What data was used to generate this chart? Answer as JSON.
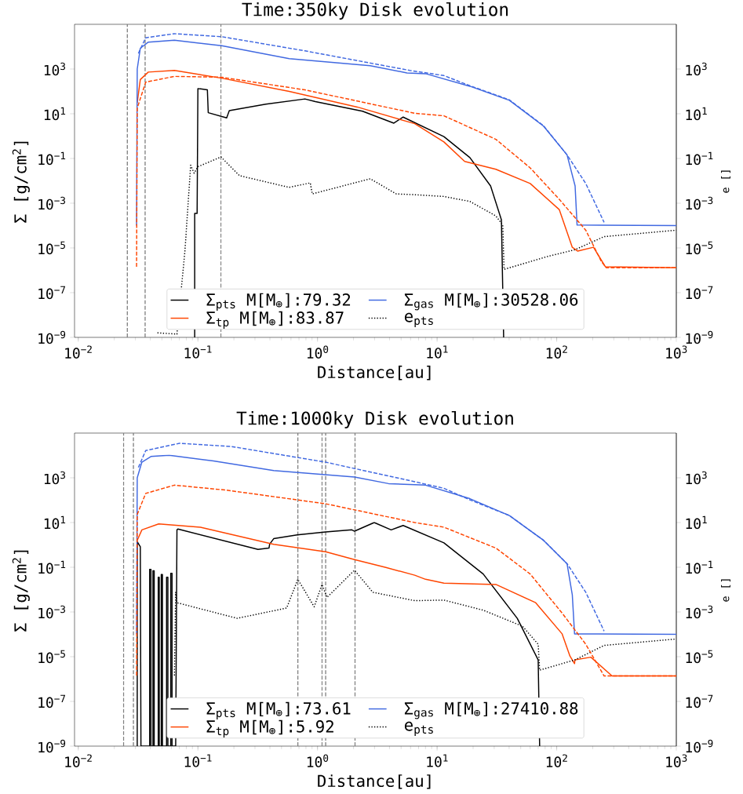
{
  "chart_data": [
    {
      "type": "line",
      "title": "Time:350ky  Disk evolution",
      "xlabel": "Distance[au]",
      "ylabel": "Σ [g/cm$^{2}$]",
      "y2label": "e []",
      "log": "xy",
      "legend": "bottom",
      "xlim": [
        0.0093,
        1000
      ],
      "ylim": [
        1e-09,
        100000.0
      ],
      "xticks": [
        {
          "value": 0.01,
          "label": "10$^{−2}$"
        },
        {
          "value": 0.1,
          "label": "10$^{−1}$"
        },
        {
          "value": 1,
          "label": "10$^{0}$"
        },
        {
          "value": 10,
          "label": "10$^{1}$"
        },
        {
          "value": 100,
          "label": "10$^{2}$"
        },
        {
          "value": 1000,
          "label": "10$^{3}$"
        }
      ],
      "yticks": [
        {
          "value": 1e-09,
          "label": "10$^{−9}$"
        },
        {
          "value": 1e-07,
          "label": "10$^{−7}$"
        },
        {
          "value": 1e-05,
          "label": "10$^{−5}$"
        },
        {
          "value": 0.001,
          "label": "10$^{−3}$"
        },
        {
          "value": 0.1,
          "label": "10$^{−1}$"
        },
        {
          "value": 10,
          "label": "10$^{1}$"
        },
        {
          "value": 1000,
          "label": "10$^{3}$"
        }
      ],
      "ref_lines": [
        {
          "axis": "x",
          "value": 0.0257,
          "color": "#808080",
          "line_style": "dashed"
        },
        {
          "axis": "x",
          "value": 0.0362,
          "color": "#808080",
          "line_style": "dashed"
        },
        {
          "axis": "x",
          "value": 0.156,
          "color": "#808080",
          "line_style": "dashed"
        }
      ],
      "series": [
        {
          "name": "Σ$_{pts}$ M[M$_{⊕}$]:79.32",
          "color": "#000000",
          "line_style": "solid",
          "x": [
            0.094,
            0.094,
            0.0985,
            0.1,
            0.12,
            0.122,
            0.174,
            0.183,
            0.37,
            0.786,
            0.96,
            2.38,
            4.35,
            5.2,
            11.4,
            18.8,
            28,
            34.5,
            36
          ],
          "values": [
            1e-09,
            0.00035,
            0.00035,
            134,
            117,
            11.2,
            6.5,
            13.8,
            27,
            46,
            35,
            13,
            3.8,
            7.1,
            0.95,
            0.11,
            0.0059,
            0.00018,
            1e-09
          ]
        },
        {
          "name": "Σ$_{tp}$  M[M$_{⊕}$]:83.87",
          "color": "#ff4500",
          "line_style": "solid",
          "x": [
            0.0311,
            0.033,
            0.0385,
            0.0636,
            0.158,
            0.58,
            2.15,
            6.5,
            11.4,
            17,
            31,
            60,
            105,
            135,
            150,
            203,
            255,
            1000
          ],
          "values": [
            31,
            340,
            730,
            870,
            390,
            100,
            20,
            3.6,
            0.55,
            0.074,
            0.033,
            0.0076,
            0.00052,
            1.07e-05,
            7.2e-06,
            1.07e-05,
            1.45e-06,
            1.3e-06
          ]
        },
        {
          "name": "Σ$_{gas}$ M[M$_{⊕}$]:30528.06",
          "color": "#4169e1",
          "line_style": "solid",
          "x": [
            0.0307,
            0.0311,
            0.033,
            0.0385,
            0.0636,
            0.158,
            0.58,
            2.76,
            5.6,
            8.0,
            18.8,
            40.2,
            77.6,
            122,
            142.5,
            148,
            1000
          ],
          "values": [
            0.0001,
            1000.0,
            8500.0,
            16000.0,
            19500.0,
            11000.0,
            2900.0,
            1400.0,
            670,
            620,
            170,
            40,
            2.8,
            0.145,
            0.0059,
            0.000105,
            0.0001
          ]
        },
        {
          "name": "e$_{pts}$",
          "color": "#000000",
          "line_style": "dotted",
          "x": [
            0.0459,
            0.0668,
            0.0779,
            0.087,
            0.093,
            0.1,
            0.156,
            0.223,
            0.58,
            0.87,
            0.904,
            2.76,
            4.56,
            6.5,
            11.4,
            18.8,
            31,
            35.4,
            36.3,
            86,
            142,
            249,
            1000
          ],
          "values": [
            1.6e-09,
            1.4e-09,
            7.2e-06,
            0.05,
            0.022,
            0.043,
            0.117,
            0.017,
            0.0051,
            0.0081,
            0.0026,
            0.0124,
            0.0026,
            0.0024,
            0.002,
            0.0012,
            0.00027,
            0.000105,
            1.1e-06,
            4.3e-06,
            8.3e-06,
            3.2e-05,
            6.2e-05
          ]
        },
        {
          "color": "#4169e1",
          "line_style": "dashed",
          "x": [
            0.0318,
            0.0366,
            0.0636,
            0.158,
            0.786,
            5.9,
            11.4,
            18.8,
            40.2,
            77.6,
            122,
            175,
            249
          ],
          "values": [
            5000.0,
            25000.0,
            38000.0,
            28000.0,
            6500.0,
            870,
            510,
            180,
            42,
            2.9,
            0.145,
            0.0076,
            0.00014
          ]
        },
        {
          "color": "#ff4500",
          "line_style": "dashed",
          "x": [
            0.0307,
            0.0311,
            0.0366,
            0.0636,
            0.158,
            0.786,
            6.5,
            11.4,
            31,
            60,
            105,
            175,
            236,
            260,
            1000
          ],
          "values": [
            1.45e-06,
            18,
            260,
            470,
            430,
            117,
            10.5,
            8.1,
            0.72,
            0.038,
            0.0015,
            6.2e-05,
            2.5e-06,
            1.3e-06,
            1.3e-06
          ]
        }
      ]
    },
    {
      "type": "line",
      "title": "Time:1000ky  Disk evolution",
      "xlabel": "Distance[au]",
      "ylabel": "Σ [g/cm$^{2}$]",
      "y2label": "e []",
      "log": "xy",
      "legend": "bottom",
      "xlim": [
        0.0093,
        1000
      ],
      "ylim": [
        1e-09,
        100000.0
      ],
      "xticks": [
        {
          "value": 0.01,
          "label": "10$^{−2}$"
        },
        {
          "value": 0.1,
          "label": "10$^{−1}$"
        },
        {
          "value": 1,
          "label": "10$^{0}$"
        },
        {
          "value": 10,
          "label": "10$^{1}$"
        },
        {
          "value": 100,
          "label": "10$^{2}$"
        },
        {
          "value": 1000,
          "label": "10$^{3}$"
        }
      ],
      "yticks": [
        {
          "value": 1e-09,
          "label": "10$^{−9}$"
        },
        {
          "value": 1e-07,
          "label": "10$^{−7}$"
        },
        {
          "value": 1e-05,
          "label": "10$^{−5}$"
        },
        {
          "value": 0.001,
          "label": "10$^{−3}$"
        },
        {
          "value": 0.1,
          "label": "10$^{−1}$"
        },
        {
          "value": 10,
          "label": "10$^{1}$"
        },
        {
          "value": 1000,
          "label": "10$^{3}$"
        }
      ],
      "ref_lines": [
        {
          "axis": "x",
          "value": 0.0239,
          "color": "#808080",
          "line_style": "dashed"
        },
        {
          "axis": "x",
          "value": 0.0289,
          "color": "#808080",
          "line_style": "dashed"
        },
        {
          "axis": "x",
          "value": 0.685,
          "color": "#808080",
          "line_style": "dashed"
        },
        {
          "axis": "x",
          "value": 1.09,
          "color": "#808080",
          "line_style": "dashed"
        },
        {
          "axis": "x",
          "value": 1.17,
          "color": "#808080",
          "line_style": "dashed"
        },
        {
          "axis": "x",
          "value": 2.06,
          "color": "#808080",
          "line_style": "dashed"
        }
      ],
      "series": [
        {
          "name": "Σ$_{pts}$ M[M$_{⊕}$]:73.61",
          "color": "#000000",
          "line_style": "solid",
          "x": [
            0.0311,
            0.0311,
            0.033,
            0.0334,
            0.0395,
            0.0395,
            0.0405,
            0.0405,
            0.0421,
            0.0421,
            0.0431,
            0.0431,
            0.0466,
            0.0466,
            0.0475,
            0.0475,
            0.0494,
            0.0494,
            0.0505,
            0.0505,
            0.0547,
            0.0547,
            0.0561,
            0.0561,
            0.0593,
            0.0593,
            0.0608,
            0.0608,
            0.0652,
            0.0668,
            0.068,
            0.318,
            0.393,
            0.398,
            0.43,
            0.676,
            1.17,
            1.94,
            2.04,
            2.98,
            4.13,
            5.2,
            11.4,
            24.3,
            46.8,
            70,
            72
          ],
          "values": [
            1e-09,
            1.4,
            0.83,
            1e-09,
            1e-09,
            0.081,
            0.081,
            1e-09,
            1e-09,
            0.069,
            0.069,
            1e-09,
            1e-09,
            0.036,
            0.036,
            1e-09,
            1e-09,
            0.047,
            0.047,
            1e-09,
            1e-09,
            0.036,
            0.036,
            1e-09,
            1e-09,
            0.054,
            0.054,
            1e-09,
            1e-09,
            4.7,
            5.1,
            0.63,
            0.72,
            1.07,
            1.9,
            2.8,
            3.8,
            4.7,
            4.1,
            10,
            4.7,
            7.4,
            1.23,
            0.05,
            0.00052,
            7.2e-06,
            1e-09
          ]
        },
        {
          "name": "Σ$_{tp}$  M[M$_{⊕}$]:5.92",
          "color": "#ff4500",
          "line_style": "solid",
          "x": [
            0.0311,
            0.034,
            0.047,
            0.105,
            0.43,
            1.17,
            2.04,
            3.73,
            6.5,
            8.0,
            11.4,
            31,
            66.7,
            111,
            129,
            141,
            142,
            193,
            290,
            1000
          ],
          "values": [
            1.6,
            4.7,
            8.7,
            6.2,
            1.07,
            0.49,
            0.22,
            0.098,
            0.044,
            0.029,
            0.0195,
            0.017,
            0.0026,
            0.000105,
            1.07e-05,
            4.9e-06,
            7.2e-06,
            9.5e-06,
            1.38e-06,
            1.38e-06
          ]
        },
        {
          "name": "Σ$_{gas}$ M[M$_{⊕}$]:27410.88",
          "color": "#4169e1",
          "line_style": "solid",
          "x": [
            0.0307,
            0.0311,
            0.034,
            0.0405,
            0.0575,
            0.135,
            0.43,
            2.04,
            3.93,
            8.0,
            18.8,
            40.2,
            77.6,
            122,
            135,
            141,
            1000
          ],
          "values": [
            0.0001,
            1000.0,
            5000.0,
            9000.0,
            10200.0,
            5700.0,
            2100.0,
            1080.0,
            550,
            470,
            117,
            20.6,
            1.6,
            0.145,
            0.0059,
            0.000105,
            0.0001
          ]
        },
        {
          "name": "e$_{pts}$",
          "color": "#000000",
          "line_style": "dotted",
          "x": [
            0.0636,
            0.0652,
            0.0668,
            0.213,
            0.552,
            0.685,
            0.938,
            1.09,
            1.2,
            2.04,
            2.9,
            6.5,
            11.4,
            24.3,
            51.8,
            70,
            72,
            142,
            249,
            1000
          ],
          "values": [
            1.45e-06,
            0.0076,
            0.0026,
            0.00052,
            0.0015,
            0.029,
            0.0017,
            0.017,
            0.0045,
            0.074,
            0.0076,
            0.0032,
            0.0034,
            0.0012,
            0.00023,
            3.6e-05,
            2.5e-06,
            7.2e-06,
            3.2e-05,
            6.2e-05
          ]
        },
        {
          "color": "#4169e1",
          "line_style": "dashed",
          "x": [
            0.0318,
            0.0366,
            0.0703,
            0.192,
            1.17,
            6.5,
            11.4,
            18.8,
            40.2,
            77.6,
            122,
            175,
            249
          ],
          "values": [
            2900.0,
            16500.0,
            35000.0,
            25000.0,
            5000.0,
            670,
            340,
            103,
            20.6,
            1.6,
            0.145,
            0.0076,
            0.00014
          ]
        },
        {
          "color": "#ff4500",
          "line_style": "dashed",
          "x": [
            0.0307,
            0.0311,
            0.0366,
            0.0636,
            0.174,
            1.17,
            6.5,
            11.4,
            31,
            60,
            111,
            175,
            249,
            1000
          ],
          "values": [
            1.45e-06,
            23,
            200,
            470,
            280,
            69,
            10,
            6.2,
            0.72,
            0.05,
            0.00089,
            3.6e-05,
            1.38e-06,
            1.38e-06
          ]
        }
      ]
    }
  ]
}
